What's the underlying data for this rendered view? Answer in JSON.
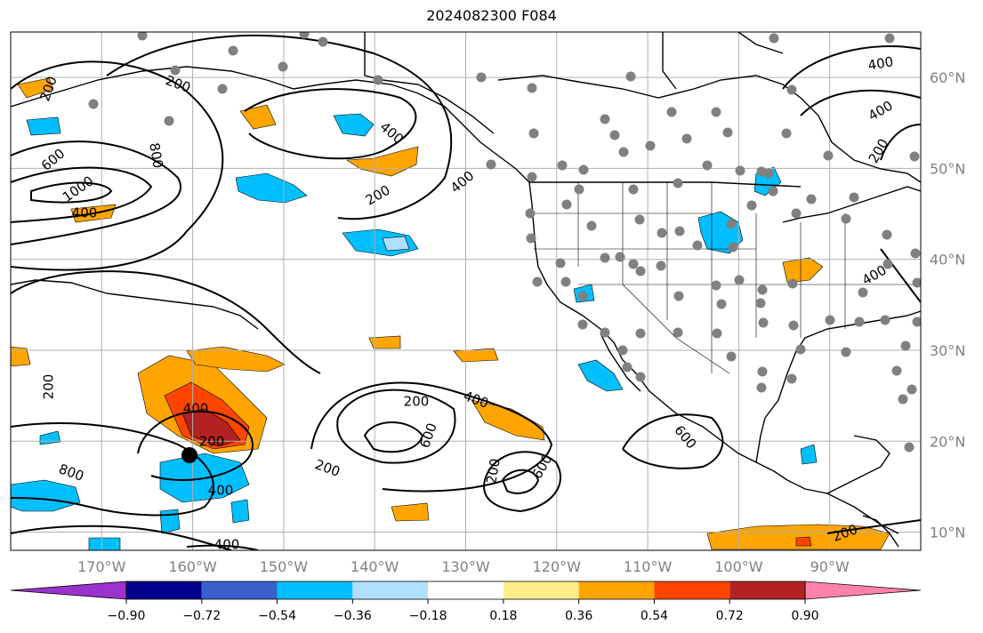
{
  "title": "2024082300 F084",
  "map": {
    "projection": "PlateCarree",
    "lon_range": [
      -180,
      -80
    ],
    "lat_range": [
      8,
      65
    ],
    "gridlines": true,
    "lon_labels": [
      "170°W",
      "160°W",
      "150°W",
      "140°W",
      "130°W",
      "120°W",
      "110°W",
      "100°W",
      "90°W"
    ],
    "lat_labels": [
      "60°N",
      "50°N",
      "40°N",
      "30°N",
      "20°N",
      "10°N"
    ],
    "contour_labels": [
      "200",
      "200",
      "400",
      "600",
      "1000",
      "800",
      "400",
      "200",
      "400",
      "200",
      "400",
      "600",
      "400",
      "200",
      "200",
      "400",
      "200",
      "600",
      "600",
      "800",
      "200",
      "400",
      "200",
      "400",
      "200",
      "400",
      "400"
    ],
    "filled_colors": {
      "light_orange": "#ffa500",
      "red_orange": "#ff4500",
      "dark_red": "#b22222",
      "cyan": "#00bfff",
      "light_blue": "#b0e0ff"
    },
    "station_marker_color": "#808080",
    "storm_marker_color": "#000000"
  },
  "colorbar": {
    "orientation": "horizontal",
    "extend": "both",
    "colors": [
      "#9a32cd",
      "#00008b",
      "#3a5fcd",
      "#00bfff",
      "#b0e0ff",
      "#ffffff",
      "#ffec8b",
      "#ffa500",
      "#ff4500",
      "#b22222",
      "#ff82ab"
    ],
    "tick_labels": [
      "−0.90",
      "−0.72",
      "−0.54",
      "−0.36",
      "−0.18",
      "0.18",
      "0.36",
      "0.54",
      "0.72",
      "0.90"
    ]
  }
}
